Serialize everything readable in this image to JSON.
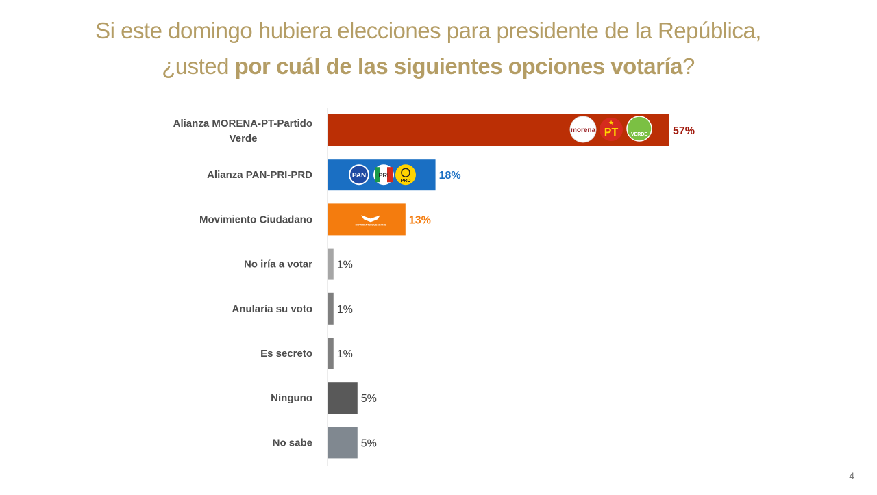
{
  "title": {
    "line1": "Si este domingo hubiera elecciones para presidente de la República,",
    "line2_prefix": "¿usted ",
    "line2_bold": "por cuál de las siguientes opciones votaría",
    "line2_suffix": "?"
  },
  "page_number": "4",
  "logos": {
    "morena": "morena",
    "pt": "PT",
    "verde": "VERDE",
    "pan": "PAN",
    "pri": "PRI",
    "prd": "PRD",
    "mc": "MOVIMIENTO CIUDADANO"
  },
  "chart_data": {
    "type": "bar",
    "orientation": "horizontal",
    "categories": [
      "Alianza MORENA-PT-Partido Verde",
      "Alianza PAN-PRI-PRD",
      "Movimiento Ciudadano",
      "No iría a votar",
      "Anularía su voto",
      "Es secreto",
      "Ninguno",
      "No sabe"
    ],
    "category_lines": [
      [
        "Alianza MORENA-PT-Partido",
        "Verde"
      ],
      [
        "Alianza PAN-PRI-PRD"
      ],
      [
        "Movimiento Ciudadano"
      ],
      [
        "No iría a votar"
      ],
      [
        "Anularía su voto"
      ],
      [
        "Es secreto"
      ],
      [
        "Ninguno"
      ],
      [
        "No sabe"
      ]
    ],
    "values": [
      57,
      18,
      13,
      1,
      1,
      1,
      5,
      5
    ],
    "value_labels": [
      "57%",
      "18%",
      "13%",
      "1%",
      "1%",
      "1%",
      "5%",
      "5%"
    ],
    "bar_colors": [
      "#bb2f05",
      "#1a6fc3",
      "#f47c0e",
      "#a6a6a6",
      "#7f7f7f",
      "#7f7f7f",
      "#595959",
      "#808890"
    ],
    "label_colors": [
      "#a11a0d",
      "#1a6fc3",
      "#f47c0e",
      "#404040",
      "#404040",
      "#404040",
      "#404040",
      "#404040"
    ],
    "label_bold": [
      true,
      true,
      true,
      false,
      false,
      false,
      false,
      false
    ],
    "xlim": [
      0,
      100
    ],
    "grid": false,
    "legend": "none"
  }
}
